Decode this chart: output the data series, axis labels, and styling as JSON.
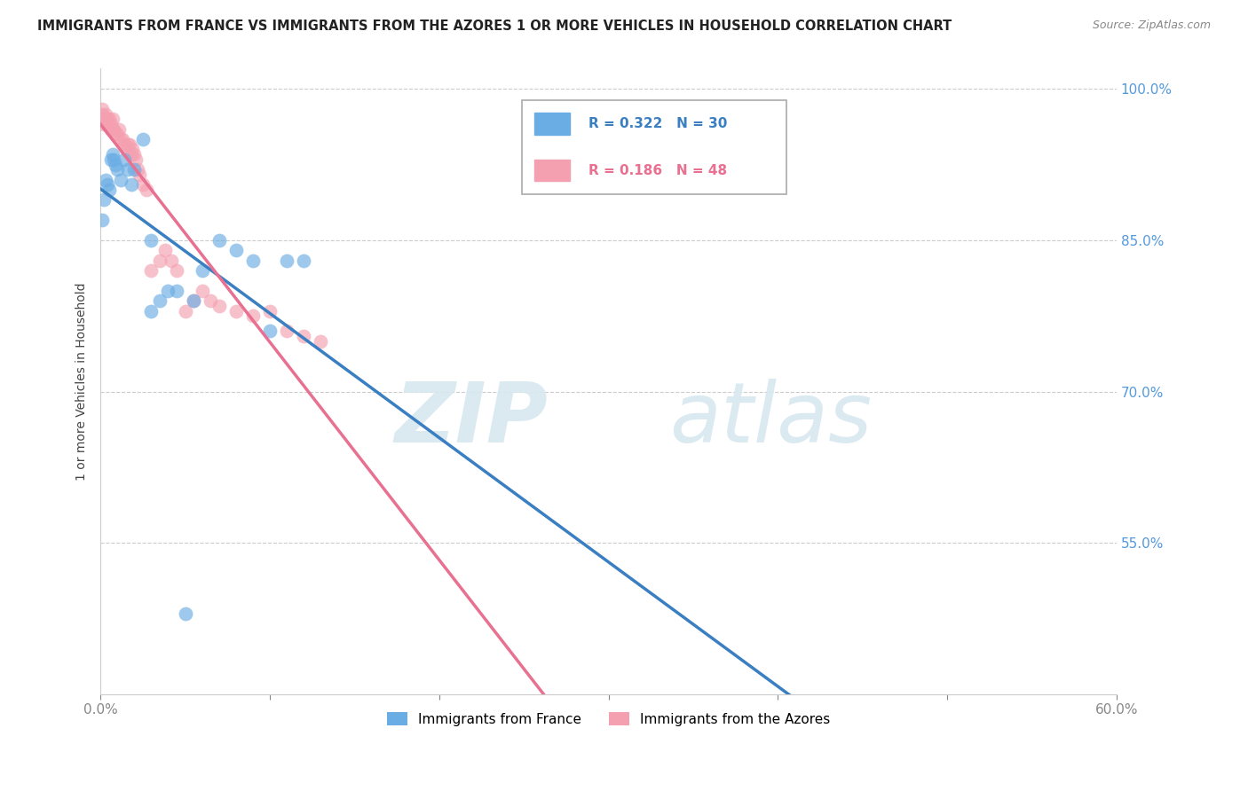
{
  "title": "IMMIGRANTS FROM FRANCE VS IMMIGRANTS FROM THE AZORES 1 OR MORE VEHICLES IN HOUSEHOLD CORRELATION CHART",
  "source": "Source: ZipAtlas.com",
  "xlabel_legend_france": "Immigrants from France",
  "xlabel_legend_azores": "Immigrants from the Azores",
  "ylabel": "1 or more Vehicles in Household",
  "xlim": [
    0.0,
    0.6
  ],
  "ylim": [
    0.4,
    1.02
  ],
  "xtick_positions": [
    0.0,
    0.1,
    0.2,
    0.3,
    0.4,
    0.5,
    0.6
  ],
  "xticklabels": [
    "0.0%",
    "",
    "",
    "",
    "",
    "",
    "60.0%"
  ],
  "ytick_positions": [
    0.55,
    0.7,
    0.85,
    1.0
  ],
  "yticklabels": [
    "55.0%",
    "70.0%",
    "85.0%",
    "100.0%"
  ],
  "r_france": 0.322,
  "n_france": 30,
  "r_azores": 0.186,
  "n_azores": 48,
  "color_france": "#6aade4",
  "color_azores": "#f4a0b0",
  "trendline_france": "#3a7fc1",
  "trendline_azores": "#e87090",
  "watermark_zip": "ZIP",
  "watermark_atlas": "atlas",
  "france_x": [
    0.001,
    0.002,
    0.003,
    0.004,
    0.005,
    0.006,
    0.007,
    0.008,
    0.009,
    0.01,
    0.012,
    0.014,
    0.016,
    0.018,
    0.02,
    0.025,
    0.03,
    0.04,
    0.05,
    0.06,
    0.07,
    0.08,
    0.09,
    0.1,
    0.11,
    0.03,
    0.035,
    0.045,
    0.055,
    0.12
  ],
  "france_y": [
    0.87,
    0.89,
    0.91,
    0.905,
    0.9,
    0.93,
    0.935,
    0.93,
    0.925,
    0.92,
    0.91,
    0.93,
    0.92,
    0.905,
    0.92,
    0.95,
    0.85,
    0.8,
    0.48,
    0.82,
    0.85,
    0.84,
    0.83,
    0.76,
    0.83,
    0.78,
    0.79,
    0.8,
    0.79,
    0.83
  ],
  "azores_x": [
    0.001,
    0.001,
    0.002,
    0.002,
    0.003,
    0.003,
    0.004,
    0.004,
    0.005,
    0.005,
    0.006,
    0.006,
    0.007,
    0.007,
    0.008,
    0.009,
    0.01,
    0.011,
    0.012,
    0.013,
    0.014,
    0.015,
    0.016,
    0.017,
    0.018,
    0.019,
    0.02,
    0.021,
    0.022,
    0.023,
    0.025,
    0.027,
    0.03,
    0.035,
    0.038,
    0.042,
    0.045,
    0.05,
    0.055,
    0.06,
    0.065,
    0.07,
    0.08,
    0.09,
    0.1,
    0.11,
    0.12,
    0.13
  ],
  "azores_y": [
    0.98,
    0.975,
    0.97,
    0.965,
    0.975,
    0.97,
    0.97,
    0.965,
    0.97,
    0.965,
    0.965,
    0.96,
    0.97,
    0.96,
    0.96,
    0.955,
    0.955,
    0.96,
    0.95,
    0.95,
    0.945,
    0.94,
    0.945,
    0.945,
    0.935,
    0.94,
    0.935,
    0.93,
    0.92,
    0.915,
    0.905,
    0.9,
    0.82,
    0.83,
    0.84,
    0.83,
    0.82,
    0.78,
    0.79,
    0.8,
    0.79,
    0.785,
    0.78,
    0.775,
    0.78,
    0.76,
    0.755,
    0.75
  ]
}
